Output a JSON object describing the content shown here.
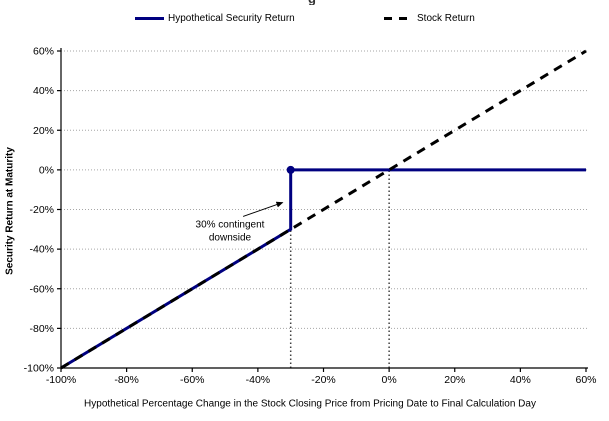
{
  "page": {
    "cropped_title_fragment": "g"
  },
  "legend": {
    "items": [
      {
        "label": "Hypothetical Security Return",
        "color": "#000080",
        "style": "solid"
      },
      {
        "label": "Stock Return",
        "color": "#000000",
        "style": "dashed"
      }
    ]
  },
  "chart_data": {
    "type": "line",
    "title": "",
    "xlabel": "Hypothetical Percentage Change in the Stock Closing Price from Pricing Date to Final Calculation Day",
    "ylabel": "Security Return at Maturity",
    "xlim": [
      -100,
      60
    ],
    "ylim": [
      -100,
      60
    ],
    "x_ticks": [
      -100,
      -80,
      -60,
      -40,
      -20,
      0,
      20,
      40,
      60
    ],
    "x_tick_labels": [
      "-100%",
      "-80%",
      "-60%",
      "-40%",
      "-20%",
      "0%",
      "20%",
      "40%",
      "60%"
    ],
    "y_ticks": [
      60,
      40,
      20,
      0,
      -20,
      -40,
      -60,
      -80,
      -100
    ],
    "y_tick_labels": [
      "60%",
      "40%",
      "20%",
      "0%",
      "-20%",
      "-40%",
      "-60%",
      "-80%",
      "-100%"
    ],
    "grid": "horizontal-dotted",
    "legend_position": "top",
    "axis_color": "#000000",
    "grid_color": "#a6a6a6",
    "series": [
      {
        "name": "Hypothetical Security Return",
        "color": "#000080",
        "style": "solid",
        "width": 3,
        "points": [
          [
            -100,
            -100
          ],
          [
            -30,
            -30
          ],
          [
            -30,
            0
          ],
          [
            60,
            0
          ]
        ],
        "markers": [
          {
            "x": -30,
            "y": 0,
            "radius": 4
          }
        ]
      },
      {
        "name": "Stock Return",
        "color": "#000000",
        "style": "dashed",
        "width": 3,
        "points": [
          [
            -100,
            -100
          ],
          [
            60,
            60
          ]
        ]
      }
    ],
    "reference_lines": [
      {
        "axis": "x",
        "value": -30,
        "from": -100,
        "to": -30,
        "style": "dotted",
        "color": "#404040"
      },
      {
        "axis": "x",
        "value": 0,
        "from": -100,
        "to": 0,
        "style": "dotted",
        "color": "#404040"
      }
    ],
    "annotation": {
      "text_lines": [
        "30% contingent",
        "downside"
      ],
      "text_anchor": {
        "x": -48.5,
        "y": -31.6
      },
      "arrow": {
        "from": [
          -44.5,
          -23.5
        ],
        "to": [
          -32.5,
          -16.5
        ]
      }
    }
  }
}
